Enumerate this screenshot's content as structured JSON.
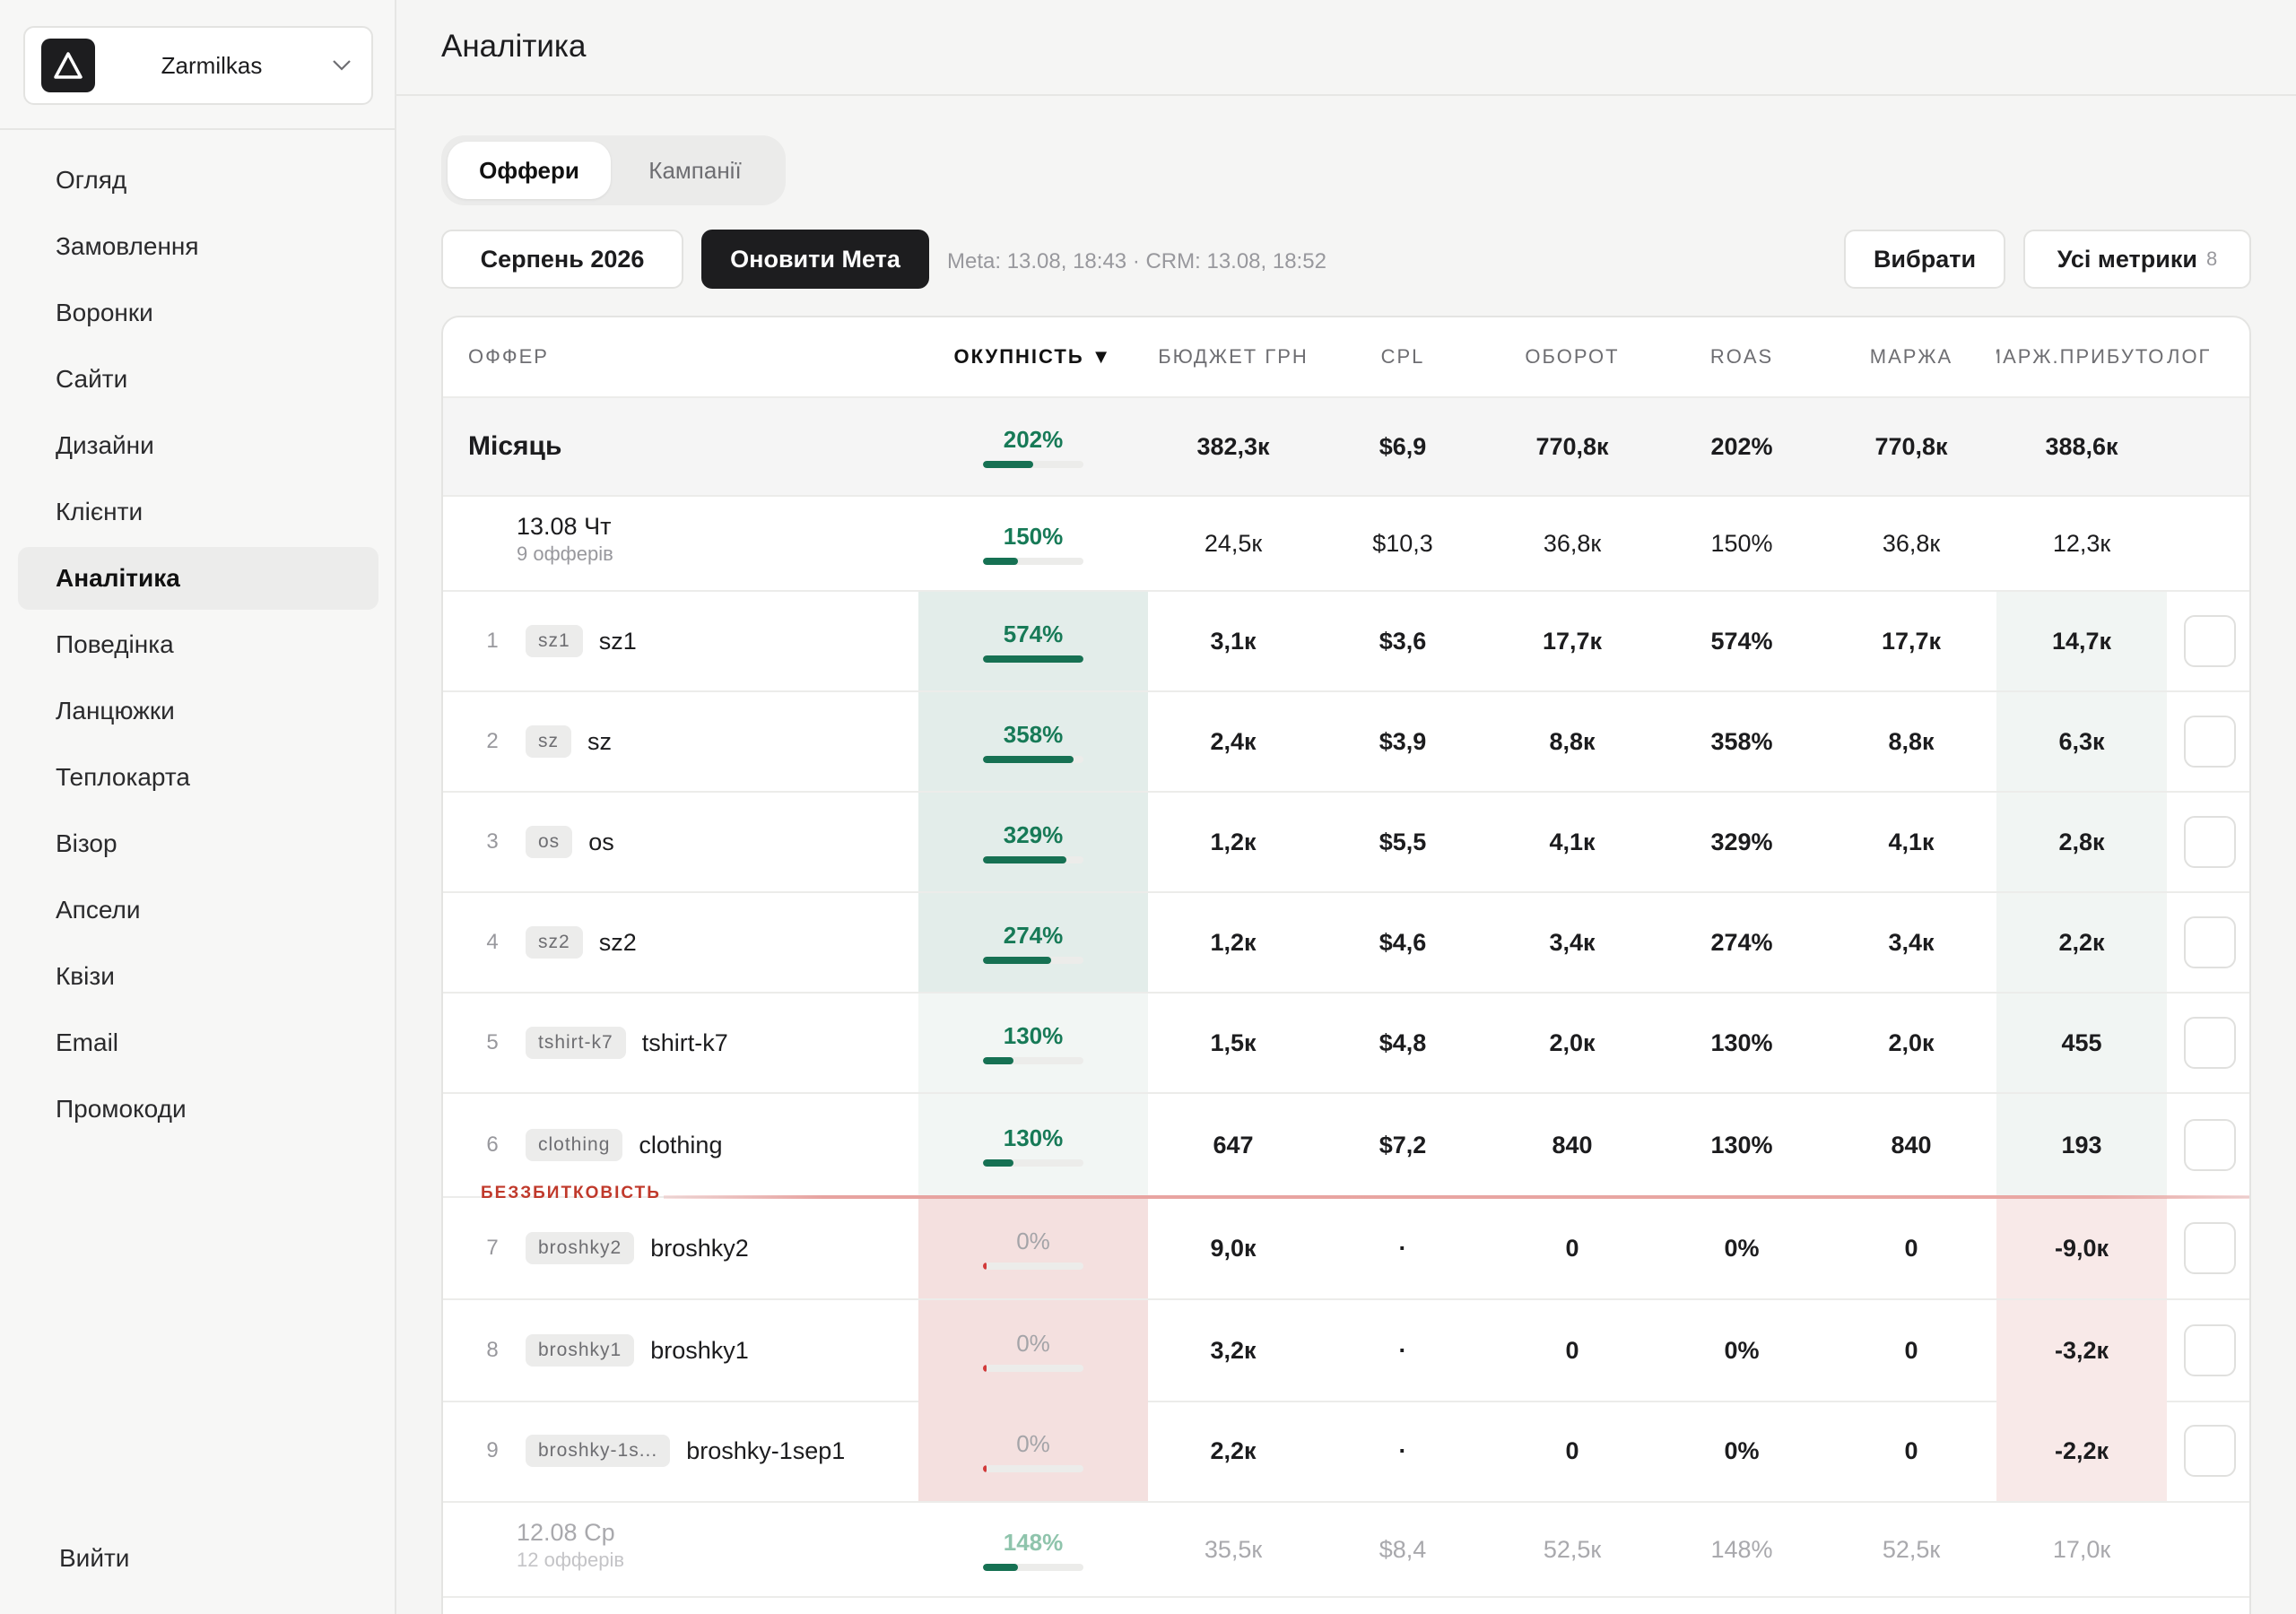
{
  "sidebar": {
    "org_name": "Zarmilkas",
    "items": [
      {
        "label": "Огляд"
      },
      {
        "label": "Замовлення"
      },
      {
        "label": "Воронки"
      },
      {
        "label": "Сайти"
      },
      {
        "label": "Дизайни"
      },
      {
        "label": "Клієнти"
      },
      {
        "label": "Аналітика",
        "active": true
      },
      {
        "label": "Поведінка"
      },
      {
        "label": "Ланцюжки"
      },
      {
        "label": "Теплокарта"
      },
      {
        "label": "Візор"
      },
      {
        "label": "Апсели"
      },
      {
        "label": "Квізи"
      },
      {
        "label": "Email"
      },
      {
        "label": "Промокоди"
      }
    ],
    "logout_label": "Вийти"
  },
  "header": {
    "title": "Аналітика"
  },
  "tabs": [
    {
      "label": "Оффери",
      "active": true
    },
    {
      "label": "Кампанії",
      "active": false
    }
  ],
  "toolbar": {
    "period_label": "Серпень 2026",
    "refresh_label": "Оновити Мета",
    "sync_info": "Meta: 13.08, 18:43 · CRM: 13.08, 18:52",
    "select_label": "Вибрати",
    "metrics_label": "Усі метрики",
    "metrics_count": "8"
  },
  "table": {
    "columns": [
      "ОФФЕР",
      "ОКУПНІСТЬ ▼",
      "БЮДЖЕТ ГРН",
      "CPL",
      "ОБОРОТ",
      "ROAS",
      "МАРЖА",
      "МАРЖ.ПРИБУТОК",
      "ЛОГ"
    ],
    "total": {
      "label": "Місяць",
      "roi": "202%",
      "roi_fill": 0.5,
      "budget": "382,3к",
      "cpl": "$6,9",
      "turnover": "770,8к",
      "roas": "202%",
      "margin": "770,8к",
      "profit": "388,6к"
    },
    "day1": {
      "date": "13.08 Чт",
      "sub": "9 офферів",
      "roi": "150%",
      "roi_fill": 0.35,
      "budget": "24,5к",
      "cpl": "$10,3",
      "turnover": "36,8к",
      "roas": "150%",
      "margin": "36,8к",
      "profit": "12,3к"
    },
    "rows": [
      {
        "n": "1",
        "tag": "sz1",
        "name": "sz1",
        "roi": "574%",
        "roi_fill": 1.0,
        "budget": "3,1к",
        "cpl": "$3,6",
        "turnover": "17,7к",
        "roas": "574%",
        "margin": "17,7к",
        "profit": "14,7к"
      },
      {
        "n": "2",
        "tag": "sz",
        "name": "sz",
        "roi": "358%",
        "roi_fill": 0.9,
        "budget": "2,4к",
        "cpl": "$3,9",
        "turnover": "8,8к",
        "roas": "358%",
        "margin": "8,8к",
        "profit": "6,3к"
      },
      {
        "n": "3",
        "tag": "os",
        "name": "os",
        "roi": "329%",
        "roi_fill": 0.83,
        "budget": "1,2к",
        "cpl": "$5,5",
        "turnover": "4,1к",
        "roas": "329%",
        "margin": "4,1к",
        "profit": "2,8к"
      },
      {
        "n": "4",
        "tag": "sz2",
        "name": "sz2",
        "roi": "274%",
        "roi_fill": 0.68,
        "budget": "1,2к",
        "cpl": "$4,6",
        "turnover": "3,4к",
        "roas": "274%",
        "margin": "3,4к",
        "profit": "2,2к"
      },
      {
        "n": "5",
        "tag": "tshirt-k7",
        "name": "tshirt-k7",
        "roi": "130%",
        "roi_fill": 0.3,
        "budget": "1,5к",
        "cpl": "$4,8",
        "turnover": "2,0к",
        "roas": "130%",
        "margin": "2,0к",
        "profit": "455"
      },
      {
        "n": "6",
        "tag": "clothing",
        "name": "clothing",
        "roi": "130%",
        "roi_fill": 0.3,
        "budget": "647",
        "cpl": "$7,2",
        "turnover": "840",
        "roas": "130%",
        "margin": "840",
        "profit": "193"
      },
      {
        "n": "7",
        "tag": "broshky2",
        "name": "broshky2",
        "roi": "0%",
        "roi_fill": 0.03,
        "budget": "9,0к",
        "cpl": "·",
        "turnover": "0",
        "roas": "0%",
        "margin": "0",
        "profit": "-9,0к"
      },
      {
        "n": "8",
        "tag": "broshky1",
        "name": "broshky1",
        "roi": "0%",
        "roi_fill": 0.03,
        "budget": "3,2к",
        "cpl": "·",
        "turnover": "0",
        "roas": "0%",
        "margin": "0",
        "profit": "-3,2к"
      },
      {
        "n": "9",
        "tag": "broshky-1s...",
        "name": "broshky-1sep1",
        "roi": "0%",
        "roi_fill": 0.03,
        "budget": "2,2к",
        "cpl": "·",
        "turnover": "0",
        "roas": "0%",
        "margin": "0",
        "profit": "-2,2к"
      }
    ],
    "breakeven_label": "БЕЗЗБИТКОВІСТЬ",
    "day2": {
      "date": "12.08 Ср",
      "sub": "12 офферів",
      "roi": "148%",
      "roi_fill": 0.35,
      "budget": "35,5к",
      "cpl": "$8,4",
      "turnover": "52,5к",
      "roas": "148%",
      "margin": "52,5к",
      "profit": "17,0к"
    }
  },
  "colors": {
    "accent_dark": "#1d1d1f",
    "roi_good": "#177a57",
    "roi_bad": "#d23a3a",
    "roi_cell_good": "#e3edea",
    "roi_cell_bad": "#f4e0df",
    "profit_cell_good": "#f1f5f3",
    "profit_cell_bad": "#f8e9e8"
  }
}
